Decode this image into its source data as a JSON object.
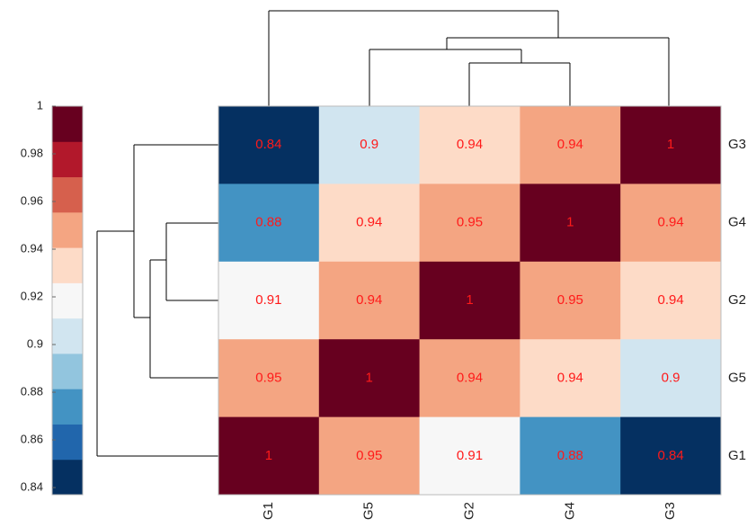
{
  "chart_data": {
    "type": "heatmap",
    "x_categories": [
      "G1",
      "G5",
      "G2",
      "G4",
      "G3"
    ],
    "y_categories": [
      "G3",
      "G4",
      "G2",
      "G5",
      "G1"
    ],
    "values": [
      [
        0.84,
        0.9,
        0.94,
        0.94,
        1
      ],
      [
        0.88,
        0.94,
        0.95,
        1,
        0.94
      ],
      [
        0.91,
        0.94,
        1,
        0.95,
        0.94
      ],
      [
        0.95,
        1,
        0.94,
        0.94,
        0.9
      ],
      [
        1,
        0.95,
        0.91,
        0.88,
        0.84
      ]
    ],
    "cell_colors": [
      [
        "#053061",
        "#d1e5f0",
        "#fddbc7",
        "#f4a582",
        "#67001f"
      ],
      [
        "#4393c3",
        "#fddbc7",
        "#f4a582",
        "#67001f",
        "#f4a582"
      ],
      [
        "#f7f7f7",
        "#f4a582",
        "#67001f",
        "#f4a582",
        "#fddbc7"
      ],
      [
        "#f4a582",
        "#67001f",
        "#f4a582",
        "#fddbc7",
        "#d1e5f0"
      ],
      [
        "#67001f",
        "#f4a582",
        "#f7f7f7",
        "#4393c3",
        "#053061"
      ]
    ],
    "value_label_color": "#ff1a1a",
    "colorbar": {
      "ylim": [
        0.837,
        1
      ],
      "yticks": [
        0.84,
        0.86,
        0.88,
        0.9,
        0.92,
        0.94,
        0.96,
        0.98,
        1
      ],
      "colors": [
        "#053061",
        "#2166ac",
        "#4393c3",
        "#92c5de",
        "#d1e5f0",
        "#f7f7f7",
        "#fddbc7",
        "#f4a582",
        "#d6604d",
        "#b2182b",
        "#67001f"
      ]
    }
  }
}
